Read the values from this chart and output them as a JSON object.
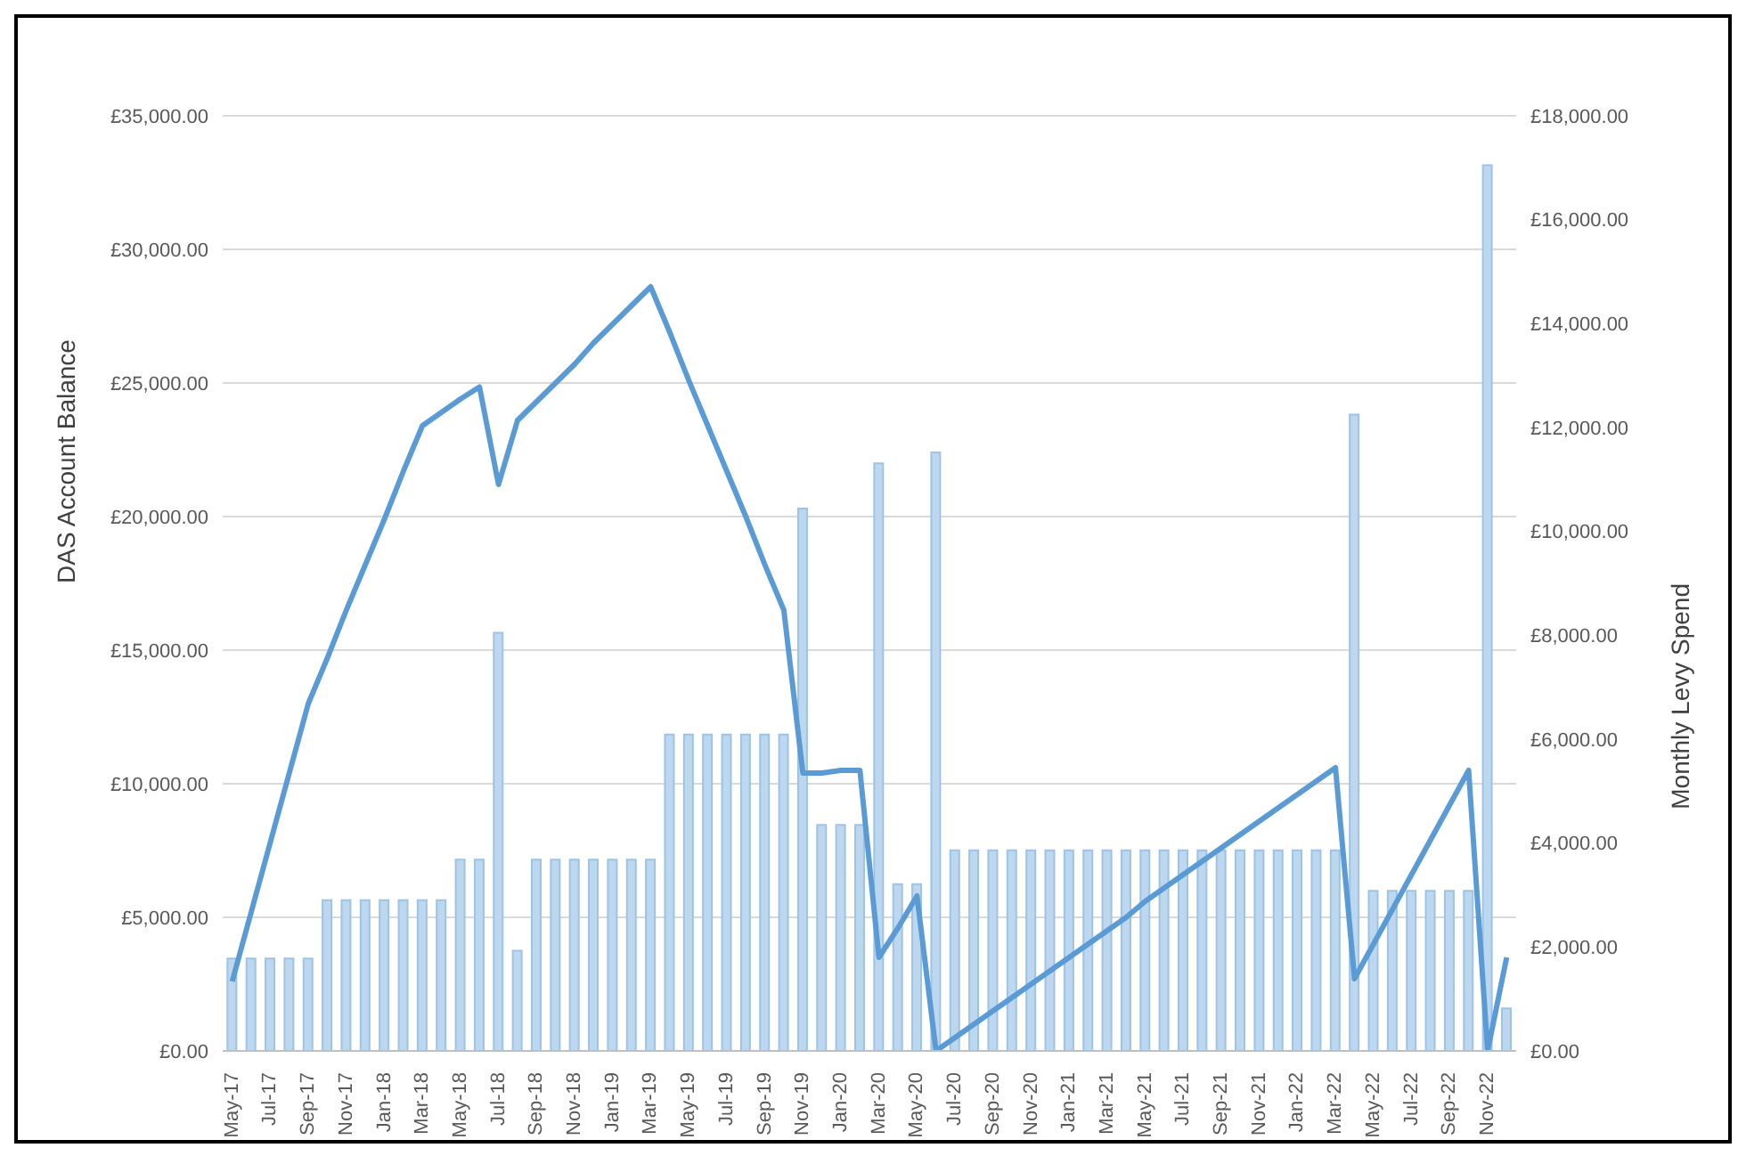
{
  "chart_data": {
    "type": "bar",
    "xlabel": null,
    "ylabel": "DAS Account Balance",
    "y2label": "Monthly Levy Spend",
    "categories": [
      "May-17",
      null,
      "Jul-17",
      null,
      "Sep-17",
      null,
      "Nov-17",
      null,
      "Jan-18",
      null,
      "Mar-18",
      null,
      "May-18",
      null,
      "Jul-18",
      null,
      "Sep-18",
      null,
      "Nov-18",
      null,
      "Jan-19",
      null,
      "Mar-19",
      null,
      "May-19",
      null,
      "Jul-19",
      null,
      "Sep-19",
      null,
      "Nov-19",
      null,
      "Jan-20",
      null,
      "Mar-20",
      null,
      "May-20",
      null,
      "Jul-20",
      null,
      "Sep-20",
      null,
      "Nov-20",
      null,
      "Jan-21",
      null,
      "Mar-21",
      null,
      "May-21",
      null,
      "Jul-21",
      null,
      "Sep-21",
      null,
      "Nov-21",
      null,
      "Jan-22",
      null,
      "Mar-22",
      null,
      "May-22",
      null,
      "Jul-22",
      null,
      "Sep-22",
      null,
      "Nov-22",
      null
    ],
    "series": [
      {
        "type": "bar",
        "axis": "y2",
        "color": "#bdd7ee",
        "values": [
          1780,
          1780,
          1780,
          1780,
          1780,
          2900,
          2900,
          2900,
          2900,
          2900,
          2900,
          2900,
          3680,
          3680,
          8050,
          1930,
          3680,
          3680,
          3680,
          3680,
          3680,
          3680,
          3680,
          6090,
          6090,
          6090,
          6090,
          6090,
          6090,
          6090,
          10440,
          4350,
          4350,
          4350,
          11310,
          3210,
          3210,
          11520,
          3860,
          3860,
          3860,
          3860,
          3860,
          3860,
          3860,
          3860,
          3860,
          3860,
          3860,
          3860,
          3860,
          3860,
          3860,
          3860,
          3860,
          3860,
          3860,
          3860,
          3860,
          12250,
          3080,
          3080,
          3080,
          3080,
          3080,
          3080,
          17050,
          820
        ]
      },
      {
        "type": "line",
        "axis": "y",
        "color": "#5b9bd5",
        "values": [
          2600,
          5200,
          7800,
          10400,
          13000,
          14700,
          16500,
          18200,
          19900,
          21700,
          23400,
          23900,
          24400,
          24850,
          21200,
          23600,
          24300,
          25000,
          25700,
          26500,
          27200,
          27900,
          28600,
          26900,
          25100,
          23400,
          21700,
          20000,
          18200,
          16500,
          10400,
          10400,
          10500,
          10500,
          3500,
          4600,
          5800,
          0,
          500,
          1000,
          1500,
          2000,
          2500,
          3000,
          3500,
          4000,
          4500,
          5000,
          5600,
          6100,
          6600,
          7100,
          7600,
          8100,
          8600,
          9100,
          9600,
          10100,
          10600,
          2700,
          4000,
          5300,
          6600,
          7900,
          9200,
          10500,
          0,
          3500
        ]
      }
    ],
    "ylim": [
      0,
      35000
    ],
    "yticks": [
      {
        "value": 0,
        "label": "£0.00"
      },
      {
        "value": 5000,
        "label": "£5,000.00"
      },
      {
        "value": 10000,
        "label": "£10,000.00"
      },
      {
        "value": 15000,
        "label": "£15,000.00"
      },
      {
        "value": 20000,
        "label": "£20,000.00"
      },
      {
        "value": 25000,
        "label": "£25,000.00"
      },
      {
        "value": 30000,
        "label": "£30,000.00"
      },
      {
        "value": 35000,
        "label": "£35,000.00"
      }
    ],
    "y2lim": [
      0,
      18000
    ],
    "y2ticks": [
      {
        "value": 0,
        "label": "£0.00"
      },
      {
        "value": 2000,
        "label": "£2,000.00"
      },
      {
        "value": 4000,
        "label": "£4,000.00"
      },
      {
        "value": 6000,
        "label": "£6,000.00"
      },
      {
        "value": 8000,
        "label": "£8,000.00"
      },
      {
        "value": 10000,
        "label": "£10,000.00"
      },
      {
        "value": 12000,
        "label": "£12,000.00"
      },
      {
        "value": 14000,
        "label": "£14,000.00"
      },
      {
        "value": 16000,
        "label": "£16,000.00"
      },
      {
        "value": 18000,
        "label": "£18,000.00"
      }
    ],
    "grid": "y",
    "legend": false,
    "line_style": "solid",
    "marker": "none"
  }
}
